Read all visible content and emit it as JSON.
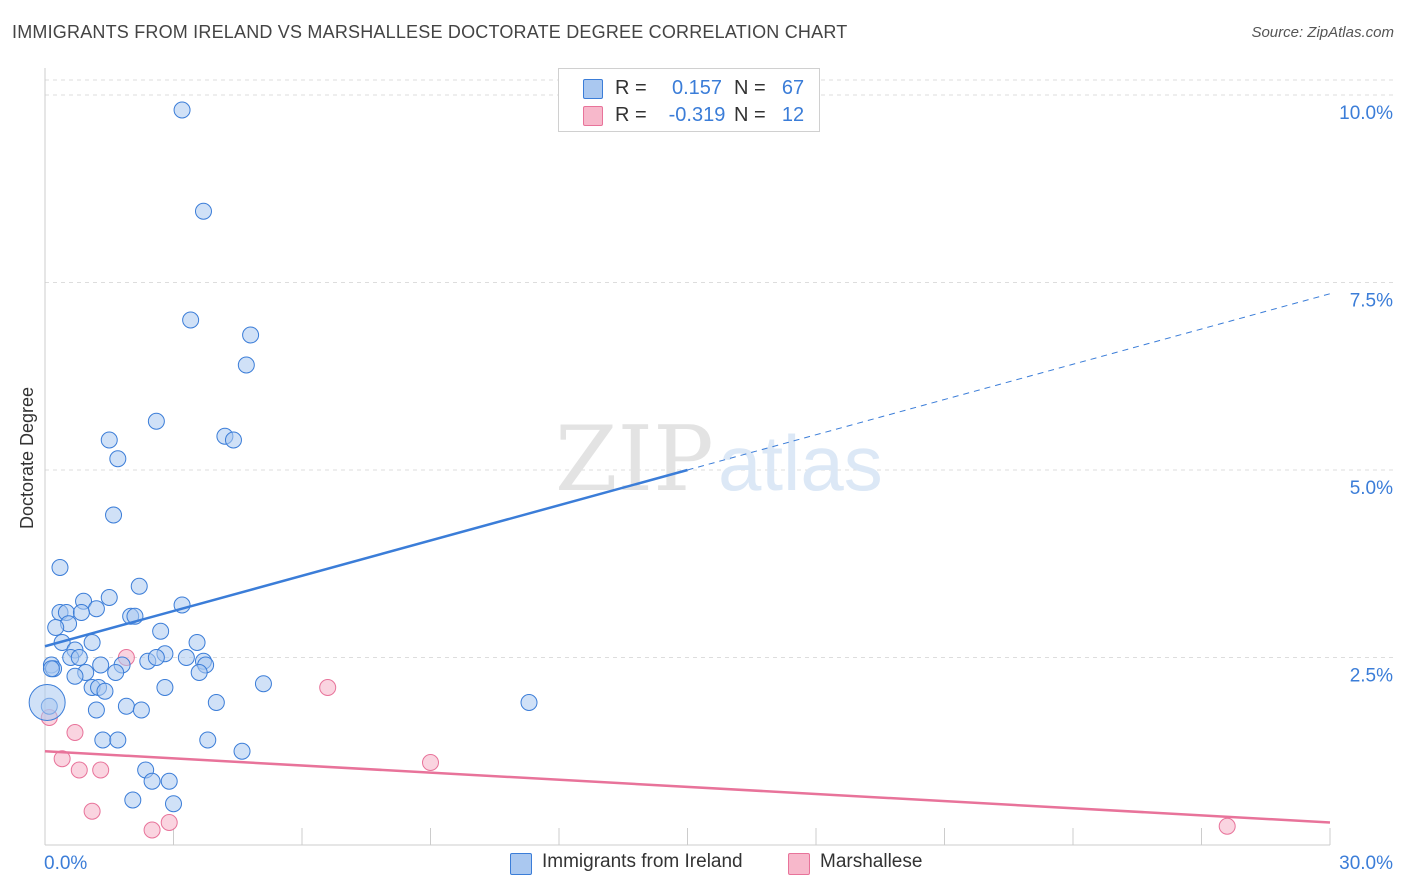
{
  "title": "IMMIGRANTS FROM IRELAND VS MARSHALLESE DOCTORATE DEGREE CORRELATION CHART",
  "source": "Source: ZipAtlas.com",
  "watermark": {
    "zip": "ZIP",
    "atlas": "atlas"
  },
  "legend": {
    "rows": [
      {
        "r_label": "R =",
        "r_value": "0.157",
        "n_label": "N =",
        "n_value": "67",
        "color": "#aac8f0"
      },
      {
        "r_label": "R =",
        "r_value": "-0.319",
        "n_label": "N =",
        "n_value": "12",
        "color": "#f7b8cb"
      }
    ]
  },
  "bottom_legend": [
    {
      "label": "Immigrants from Ireland",
      "color": "#aac8f0"
    },
    {
      "label": "Marshallese",
      "color": "#f7b8cb"
    }
  ],
  "chart_data": {
    "type": "scatter",
    "title": "IMMIGRANTS FROM IRELAND VS MARSHALLESE DOCTORATE DEGREE CORRELATION CHART",
    "xlabel": "",
    "ylabel": "Doctorate Degree",
    "xlim": [
      0,
      30
    ],
    "ylim": [
      0,
      10.2
    ],
    "x_tick_labels": [
      "0.0%",
      "30.0%"
    ],
    "y_tick_labels": [
      "2.5%",
      "5.0%",
      "7.5%",
      "10.0%"
    ],
    "y_ticks": [
      2.5,
      5.0,
      7.5,
      10.0
    ],
    "x_minor_ticks": [
      0,
      3,
      6,
      9,
      12,
      15,
      18,
      21,
      24,
      27,
      30
    ],
    "grid": "horizontal dashed",
    "colors": {
      "ireland": "#3b7dd8",
      "ireland_fill": "#aac8f0",
      "marshallese": "#e8739a",
      "marshallese_fill": "#f7b8cb",
      "tick_label": "#3b7dd8"
    },
    "series": [
      {
        "name": "Immigrants from Ireland",
        "trend": {
          "x0": 0,
          "y0": 2.65,
          "x1": 15,
          "y1": 5.0,
          "dash_x1": 30,
          "dash_y1": 7.35
        },
        "points": [
          [
            3.2,
            9.8
          ],
          [
            3.7,
            8.45
          ],
          [
            3.4,
            7.0
          ],
          [
            4.8,
            6.8
          ],
          [
            4.7,
            6.4
          ],
          [
            2.6,
            5.65
          ],
          [
            1.5,
            5.4
          ],
          [
            4.2,
            5.45
          ],
          [
            4.4,
            5.4
          ],
          [
            1.7,
            5.15
          ],
          [
            1.6,
            4.4
          ],
          [
            0.35,
            3.7
          ],
          [
            2.2,
            3.45
          ],
          [
            1.5,
            3.3
          ],
          [
            3.2,
            3.2
          ],
          [
            0.9,
            3.25
          ],
          [
            1.2,
            3.15
          ],
          [
            0.35,
            3.1
          ],
          [
            0.5,
            3.1
          ],
          [
            2.0,
            3.05
          ],
          [
            2.1,
            3.05
          ],
          [
            0.85,
            3.1
          ],
          [
            0.55,
            2.95
          ],
          [
            0.25,
            2.9
          ],
          [
            2.7,
            2.85
          ],
          [
            0.4,
            2.7
          ],
          [
            1.1,
            2.7
          ],
          [
            3.55,
            2.7
          ],
          [
            0.7,
            2.6
          ],
          [
            0.6,
            2.5
          ],
          [
            0.8,
            2.5
          ],
          [
            2.8,
            2.55
          ],
          [
            2.4,
            2.45
          ],
          [
            2.6,
            2.5
          ],
          [
            3.3,
            2.5
          ],
          [
            3.7,
            2.45
          ],
          [
            3.75,
            2.4
          ],
          [
            0.15,
            2.4
          ],
          [
            0.2,
            2.35
          ],
          [
            1.3,
            2.4
          ],
          [
            1.8,
            2.4
          ],
          [
            1.65,
            2.3
          ],
          [
            0.95,
            2.3
          ],
          [
            3.6,
            2.3
          ],
          [
            0.7,
            2.25
          ],
          [
            5.1,
            2.15
          ],
          [
            2.8,
            2.1
          ],
          [
            1.1,
            2.1
          ],
          [
            1.25,
            2.1
          ],
          [
            1.4,
            2.05
          ],
          [
            4.0,
            1.9
          ],
          [
            11.3,
            1.9
          ],
          [
            0.1,
            1.85
          ],
          [
            1.9,
            1.85
          ],
          [
            2.25,
            1.8
          ],
          [
            1.2,
            1.8
          ],
          [
            1.35,
            1.4
          ],
          [
            1.7,
            1.4
          ],
          [
            3.8,
            1.4
          ],
          [
            4.6,
            1.25
          ],
          [
            2.35,
            1.0
          ],
          [
            2.5,
            0.85
          ],
          [
            2.9,
            0.85
          ],
          [
            2.05,
            0.6
          ],
          [
            3.0,
            0.55
          ],
          [
            0.15,
            2.35
          ],
          [
            0.05,
            1.9
          ]
        ]
      },
      {
        "name": "Marshallese",
        "trend": {
          "x0": 0,
          "y0": 1.25,
          "x1": 30,
          "y1": 0.3
        },
        "points": [
          [
            1.9,
            2.5
          ],
          [
            6.6,
            2.1
          ],
          [
            0.1,
            1.7
          ],
          [
            0.7,
            1.5
          ],
          [
            0.4,
            1.15
          ],
          [
            9.0,
            1.1
          ],
          [
            1.3,
            1.0
          ],
          [
            0.8,
            1.0
          ],
          [
            1.1,
            0.45
          ],
          [
            2.9,
            0.3
          ],
          [
            2.5,
            0.2
          ],
          [
            27.6,
            0.25
          ]
        ]
      }
    ]
  }
}
